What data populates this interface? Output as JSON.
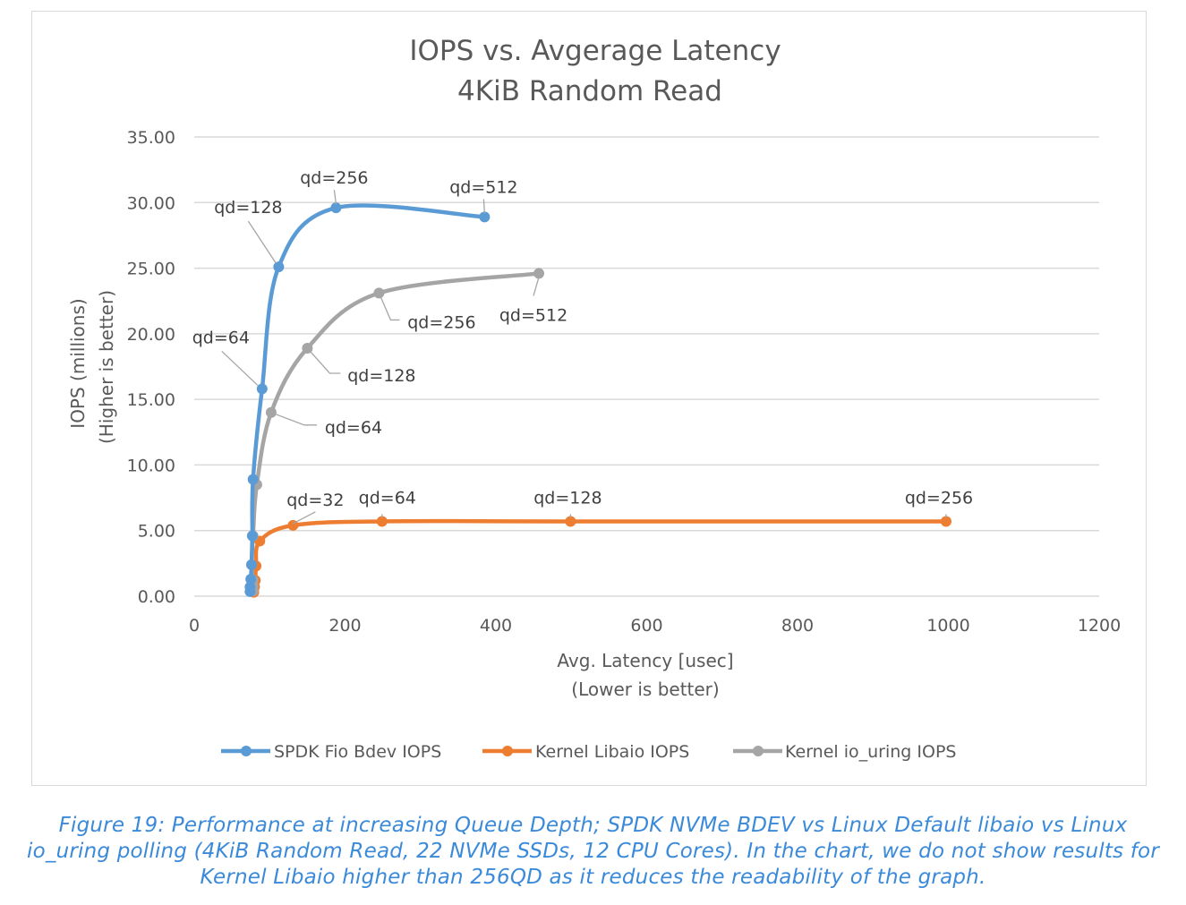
{
  "chart_data": {
    "type": "line",
    "title": "IOPS vs. Avgerage Latency",
    "subtitle": "4KiB Random Read",
    "xlabel": "Avg. Latency [usec]",
    "xlabel2": "(Lower is better)",
    "ylabel": "IOPS (millions)",
    "ylabel2": "(Higher is better)",
    "xlim": [
      0,
      1200
    ],
    "ylim": [
      0,
      35
    ],
    "xticks": [
      "0",
      "200",
      "400",
      "600",
      "800",
      "1000",
      "1200"
    ],
    "yticks": [
      "0.00",
      "5.00",
      "10.00",
      "15.00",
      "20.00",
      "25.00",
      "30.00",
      "35.00"
    ],
    "grid": "horizontal",
    "legend_position": "bottom",
    "smooth": true,
    "series": [
      {
        "name": "SPDK Fio Bdev IOPS",
        "color": "#5b9bd5",
        "x": [
          74,
          74,
          75,
          76,
          77,
          78,
          90,
          112,
          188,
          385
        ],
        "y": [
          0.35,
          0.7,
          1.3,
          2.4,
          4.6,
          8.9,
          15.8,
          25.1,
          29.6,
          28.9
        ]
      },
      {
        "name": "Kernel Libaio IOPS",
        "color": "#ed7d31",
        "x": [
          79,
          80,
          81,
          82,
          87,
          131,
          249,
          499,
          997
        ],
        "y": [
          0.3,
          0.7,
          1.2,
          2.3,
          4.2,
          5.4,
          5.7,
          5.7,
          5.7
        ]
      },
      {
        "name": "Kernel io_uring IOPS",
        "color": "#a5a5a5",
        "x": [
          78,
          78,
          78,
          76,
          78,
          83,
          102,
          150,
          245,
          457
        ],
        "y": [
          0.4,
          0.7,
          1.2,
          2.4,
          4.6,
          8.5,
          14.0,
          18.9,
          23.1,
          24.6
        ]
      }
    ],
    "annotations": [
      {
        "series": 0,
        "point": 6,
        "text": "qd=64"
      },
      {
        "series": 0,
        "point": 7,
        "text": "qd=128"
      },
      {
        "series": 0,
        "point": 8,
        "text": "qd=256"
      },
      {
        "series": 0,
        "point": 9,
        "text": "qd=512"
      },
      {
        "series": 2,
        "point": 6,
        "text": "qd=64"
      },
      {
        "series": 2,
        "point": 7,
        "text": "qd=128"
      },
      {
        "series": 2,
        "point": 8,
        "text": "qd=256"
      },
      {
        "series": 2,
        "point": 9,
        "text": "qd=512"
      },
      {
        "series": 1,
        "point": 5,
        "text": "qd=32"
      },
      {
        "series": 1,
        "point": 6,
        "text": "qd=64"
      },
      {
        "series": 1,
        "point": 7,
        "text": "qd=128"
      },
      {
        "series": 1,
        "point": 8,
        "text": "qd=256"
      }
    ]
  },
  "caption": "Figure 19: Performance at increasing Queue Depth; SPDK NVMe BDEV vs Linux Default libaio vs Linux io_uring polling (4KiB Random Read, 22 NVMe SSDs, 12 CPU Cores). In the chart, we do not show results for Kernel Libaio higher than 256QD as it reduces the readability of the graph."
}
